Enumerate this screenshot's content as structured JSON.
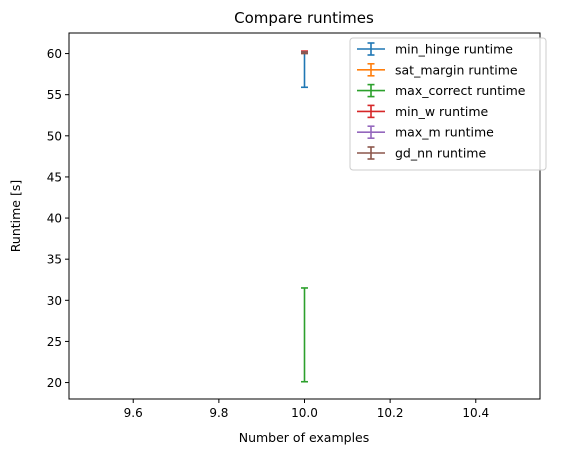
{
  "chart_data": {
    "type": "errorbar",
    "title": "Compare runtimes",
    "xlabel": "Number of examples",
    "ylabel": "Runtime [s]",
    "xlim": [
      9.45,
      10.55
    ],
    "ylim": [
      18.0,
      62.5
    ],
    "xticks": [
      9.6,
      9.8,
      10.0,
      10.2,
      10.4
    ],
    "yticks": [
      20,
      25,
      30,
      35,
      40,
      45,
      50,
      55,
      60
    ],
    "grid": false,
    "legend_position": "top-right",
    "series": [
      {
        "name": "min_hinge runtime",
        "color": "#1f77b4",
        "x": [
          10.0
        ],
        "y": [
          58.0
        ],
        "yerr_low": [
          55.9
        ],
        "yerr_high": [
          60.1
        ]
      },
      {
        "name": "sat_margin runtime",
        "color": "#ff7f0e",
        "x": [
          10.0
        ],
        "y": [
          60.2
        ],
        "yerr_low": [
          60.15
        ],
        "yerr_high": [
          60.25
        ]
      },
      {
        "name": "max_correct runtime",
        "color": "#2ca02c",
        "x": [
          10.0
        ],
        "y": [
          25.8
        ],
        "yerr_low": [
          20.1
        ],
        "yerr_high": [
          31.5
        ]
      },
      {
        "name": "min_w runtime",
        "color": "#d62728",
        "x": [
          10.0
        ],
        "y": [
          60.2
        ],
        "yerr_low": [
          60.1
        ],
        "yerr_high": [
          60.3
        ]
      },
      {
        "name": "max_m runtime",
        "color": "#9467bd",
        "x": [
          10.0
        ],
        "y": [
          60.1
        ],
        "yerr_low": [
          60.05
        ],
        "yerr_high": [
          60.2
        ]
      },
      {
        "name": "gd_nn runtime",
        "color": "#8c564b",
        "x": [
          10.0
        ],
        "y": [
          60.1
        ],
        "yerr_low": [
          60.0
        ],
        "yerr_high": [
          60.2
        ]
      }
    ]
  }
}
